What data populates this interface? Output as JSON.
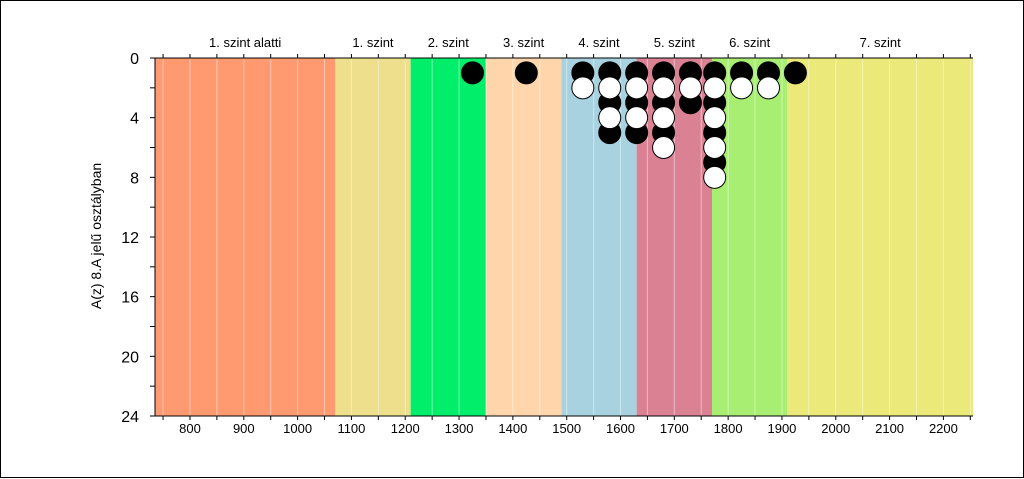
{
  "chart_data": {
    "type": "scatter",
    "ylabel": "A(z) 8.A jelű osztályban",
    "xlim": [
      735,
      2255
    ],
    "ylim": [
      0,
      24
    ],
    "y_inverted": true,
    "x_ticks": [
      800,
      900,
      1000,
      1100,
      1200,
      1300,
      1400,
      1500,
      1600,
      1700,
      1800,
      1900,
      2000,
      2100,
      2200
    ],
    "y_ticks": [
      0,
      4,
      8,
      12,
      16,
      20,
      24
    ],
    "bands": [
      {
        "label": "1. szint alatti",
        "from": 735,
        "to": 1070,
        "color": "#ff9a70"
      },
      {
        "label": "1. szint",
        "from": 1070,
        "to": 1210,
        "color": "#eedf8c"
      },
      {
        "label": "2. szint",
        "from": 1210,
        "to": 1350,
        "color": "#00ee6a"
      },
      {
        "label": "3. szint",
        "from": 1350,
        "to": 1490,
        "color": "#ffd6ac"
      },
      {
        "label": "4. szint",
        "from": 1490,
        "to": 1630,
        "color": "#a8d2e0"
      },
      {
        "label": "5. szint",
        "from": 1630,
        "to": 1770,
        "color": "#da8294"
      },
      {
        "label": "6. szint",
        "from": 1770,
        "to": 1910,
        "color": "#a8ee72"
      },
      {
        "label": "7. szint",
        "from": 1910,
        "to": 2255,
        "color": "#eae97a"
      }
    ],
    "series": [
      {
        "fill": "#000000",
        "points": [
          [
            1325,
            1
          ],
          [
            1425,
            1
          ],
          [
            1530,
            1
          ],
          [
            1580,
            1
          ],
          [
            1580,
            3
          ],
          [
            1580,
            5
          ],
          [
            1630,
            1
          ],
          [
            1630,
            3
          ],
          [
            1630,
            5
          ],
          [
            1680,
            1
          ],
          [
            1680,
            3
          ],
          [
            1680,
            5
          ],
          [
            1730,
            1
          ],
          [
            1730,
            3
          ],
          [
            1775,
            1
          ],
          [
            1775,
            3
          ],
          [
            1775,
            5
          ],
          [
            1775,
            7
          ],
          [
            1825,
            1
          ],
          [
            1875,
            1
          ],
          [
            1925,
            1
          ]
        ]
      },
      {
        "fill": "#ffffff",
        "points": [
          [
            1530,
            2
          ],
          [
            1580,
            2
          ],
          [
            1580,
            4
          ],
          [
            1630,
            2
          ],
          [
            1630,
            4
          ],
          [
            1680,
            2
          ],
          [
            1680,
            4
          ],
          [
            1680,
            6
          ],
          [
            1730,
            2
          ],
          [
            1775,
            2
          ],
          [
            1775,
            4
          ],
          [
            1775,
            6
          ],
          [
            1775,
            8
          ],
          [
            1825,
            2
          ],
          [
            1875,
            2
          ]
        ]
      }
    ]
  }
}
